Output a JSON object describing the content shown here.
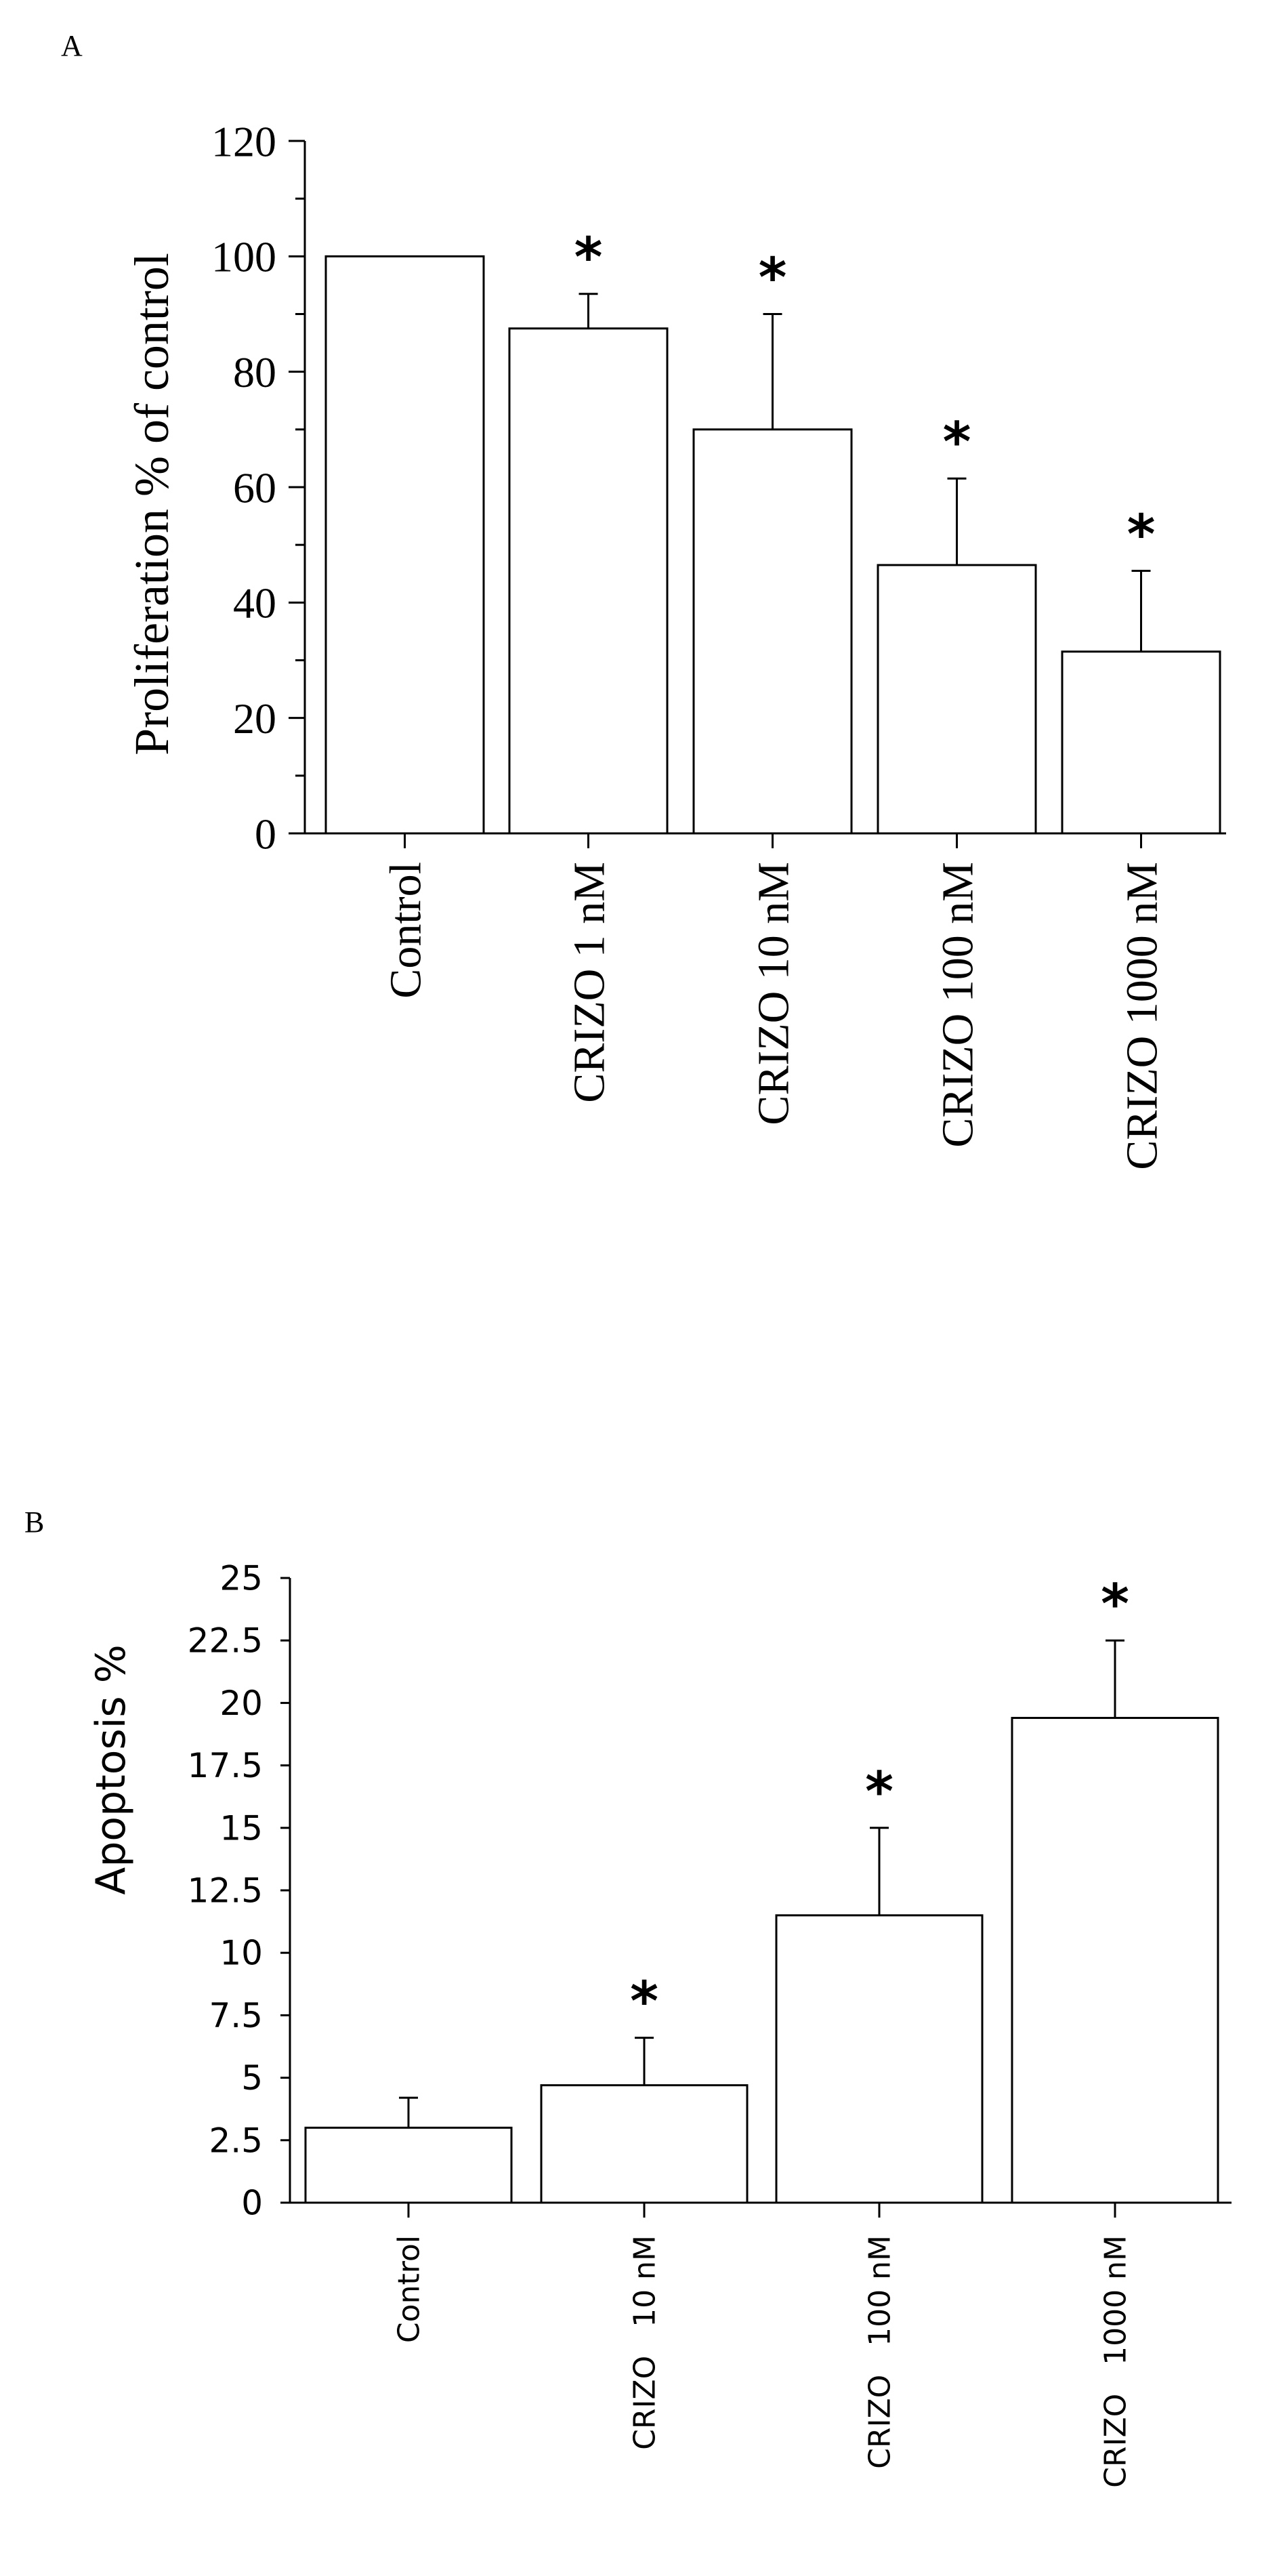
{
  "chart_data": [
    {
      "type": "bar",
      "panel_label": "A",
      "ylabel": "Proliferation % of control",
      "xlabel": "",
      "ylim": [
        0,
        120
      ],
      "y_ticks": [
        "0",
        "20",
        "40",
        "60",
        "80",
        "100",
        "120"
      ],
      "categories": [
        "Control",
        "CRIZO 1 nM",
        "CRIZO 10 nM",
        "CRIZO 100 nM",
        "CRIZO 1000 nM"
      ],
      "values": [
        100,
        87.5,
        70,
        46.5,
        31.5
      ],
      "error_upper": [
        null,
        93.5,
        90,
        61.5,
        45.5
      ],
      "annotations": [
        "",
        "*",
        "*",
        "*",
        "*"
      ],
      "grid": false,
      "colors": {
        "bar_fill": "#ffffff",
        "bar_stroke": "#000000"
      }
    },
    {
      "type": "bar",
      "panel_label": "B",
      "ylabel": "Apoptosis %",
      "xlabel": "",
      "ylim": [
        0,
        25
      ],
      "y_ticks": [
        "0",
        "2.5",
        "5",
        "7.5",
        "10",
        "12.5",
        "15",
        "17.5",
        "20",
        "22.5",
        "25"
      ],
      "categories": [
        "Control",
        "CRIZO   10 nM",
        "CRIZO   100 nM",
        "CRIZO   1000 nM"
      ],
      "values": [
        3,
        4.7,
        11.5,
        19.4
      ],
      "error_upper": [
        4.2,
        6.6,
        15,
        22.5
      ],
      "annotations": [
        "",
        "*",
        "*",
        "*"
      ],
      "grid": false,
      "colors": {
        "bar_fill": "#ffffff",
        "bar_stroke": "#000000"
      }
    }
  ]
}
